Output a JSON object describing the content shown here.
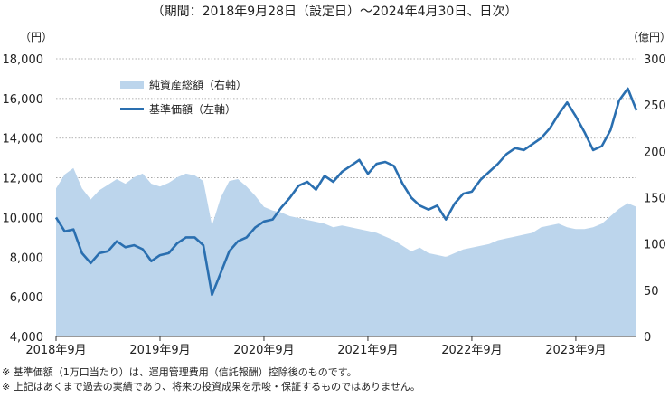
{
  "period_text": "（期間：2018年9月28日（設定日）～2024年4月30日、日次）",
  "notes": [
    "※ 基準価額（1万口当たり）は、運用管理費用（信託報酬）控除後のものです。",
    "※ 上記はあくまで過去の実績であり、将来の投資成果を示唆・保証するものではありません。"
  ],
  "chart_data": {
    "type": "line",
    "title": "",
    "left_axis": {
      "unit": "（円）",
      "ylim": [
        4000,
        18000
      ],
      "ticks": [
        4000,
        6000,
        8000,
        10000,
        12000,
        14000,
        16000,
        18000
      ],
      "tick_labels": [
        "4,000",
        "6,000",
        "8,000",
        "10,000",
        "12,000",
        "14,000",
        "16,000",
        "18,000"
      ]
    },
    "right_axis": {
      "unit": "（億円）",
      "ylim": [
        0,
        300
      ],
      "ticks": [
        0,
        50,
        100,
        150,
        200,
        250,
        300
      ],
      "tick_labels": [
        "0",
        "50",
        "100",
        "150",
        "200",
        "250",
        "300"
      ]
    },
    "x_axis": {
      "xlim": [
        "2018-09",
        "2024-04"
      ],
      "ticks": [
        "2018-09",
        "2019-09",
        "2020-09",
        "2021-09",
        "2022-09",
        "2023-09"
      ],
      "tick_labels": [
        "2018年9月",
        "2019年9月",
        "2020年9月",
        "2021年9月",
        "2022年9月",
        "2023年9月"
      ]
    },
    "grid": true,
    "legend_placement": "top-left",
    "series": [
      {
        "name": "純資産総額（右軸）",
        "kind": "area",
        "axis": "right",
        "color": "#bcd5ec",
        "points": [
          [
            "2018-09",
            160
          ],
          [
            "2018-10",
            175
          ],
          [
            "2018-11",
            182
          ],
          [
            "2018-12",
            160
          ],
          [
            "2019-01",
            148
          ],
          [
            "2019-02",
            158
          ],
          [
            "2019-03",
            164
          ],
          [
            "2019-04",
            170
          ],
          [
            "2019-05",
            165
          ],
          [
            "2019-06",
            172
          ],
          [
            "2019-07",
            176
          ],
          [
            "2019-08",
            165
          ],
          [
            "2019-09",
            162
          ],
          [
            "2019-10",
            166
          ],
          [
            "2019-11",
            172
          ],
          [
            "2019-12",
            176
          ],
          [
            "2020-01",
            174
          ],
          [
            "2020-02",
            168
          ],
          [
            "2020-03",
            120
          ],
          [
            "2020-04",
            150
          ],
          [
            "2020-05",
            168
          ],
          [
            "2020-06",
            170
          ],
          [
            "2020-07",
            162
          ],
          [
            "2020-08",
            152
          ],
          [
            "2020-09",
            140
          ],
          [
            "2020-10",
            136
          ],
          [
            "2020-11",
            134
          ],
          [
            "2020-12",
            130
          ],
          [
            "2021-01",
            128
          ],
          [
            "2021-02",
            126
          ],
          [
            "2021-03",
            124
          ],
          [
            "2021-04",
            122
          ],
          [
            "2021-05",
            118
          ],
          [
            "2021-06",
            120
          ],
          [
            "2021-07",
            118
          ],
          [
            "2021-08",
            116
          ],
          [
            "2021-09",
            114
          ],
          [
            "2021-10",
            112
          ],
          [
            "2021-11",
            108
          ],
          [
            "2021-12",
            104
          ],
          [
            "2022-01",
            98
          ],
          [
            "2022-02",
            92
          ],
          [
            "2022-03",
            96
          ],
          [
            "2022-04",
            90
          ],
          [
            "2022-05",
            88
          ],
          [
            "2022-06",
            86
          ],
          [
            "2022-07",
            90
          ],
          [
            "2022-08",
            94
          ],
          [
            "2022-09",
            96
          ],
          [
            "2022-10",
            98
          ],
          [
            "2022-11",
            100
          ],
          [
            "2022-12",
            104
          ],
          [
            "2023-01",
            106
          ],
          [
            "2023-02",
            108
          ],
          [
            "2023-03",
            110
          ],
          [
            "2023-04",
            112
          ],
          [
            "2023-05",
            118
          ],
          [
            "2023-06",
            120
          ],
          [
            "2023-07",
            122
          ],
          [
            "2023-08",
            118
          ],
          [
            "2023-09",
            116
          ],
          [
            "2023-10",
            116
          ],
          [
            "2023-11",
            118
          ],
          [
            "2023-12",
            122
          ],
          [
            "2024-01",
            130
          ],
          [
            "2024-02",
            138
          ],
          [
            "2024-03",
            144
          ],
          [
            "2024-04",
            140
          ]
        ]
      },
      {
        "name": "基準価額（左軸）",
        "kind": "line",
        "axis": "left",
        "color": "#2a6fb0",
        "points": [
          [
            "2018-09",
            10000
          ],
          [
            "2018-10",
            9300
          ],
          [
            "2018-11",
            9400
          ],
          [
            "2018-12",
            8200
          ],
          [
            "2019-01",
            7700
          ],
          [
            "2019-02",
            8200
          ],
          [
            "2019-03",
            8300
          ],
          [
            "2019-04",
            8800
          ],
          [
            "2019-05",
            8500
          ],
          [
            "2019-06",
            8600
          ],
          [
            "2019-07",
            8400
          ],
          [
            "2019-08",
            7800
          ],
          [
            "2019-09",
            8100
          ],
          [
            "2019-10",
            8200
          ],
          [
            "2019-11",
            8700
          ],
          [
            "2019-12",
            9000
          ],
          [
            "2020-01",
            9000
          ],
          [
            "2020-02",
            8600
          ],
          [
            "2020-03",
            6100
          ],
          [
            "2020-04",
            7200
          ],
          [
            "2020-05",
            8300
          ],
          [
            "2020-06",
            8800
          ],
          [
            "2020-07",
            9000
          ],
          [
            "2020-08",
            9500
          ],
          [
            "2020-09",
            9800
          ],
          [
            "2020-10",
            9900
          ],
          [
            "2020-11",
            10500
          ],
          [
            "2020-12",
            11000
          ],
          [
            "2021-01",
            11600
          ],
          [
            "2021-02",
            11800
          ],
          [
            "2021-03",
            11400
          ],
          [
            "2021-04",
            12100
          ],
          [
            "2021-05",
            11800
          ],
          [
            "2021-06",
            12300
          ],
          [
            "2021-07",
            12600
          ],
          [
            "2021-08",
            12900
          ],
          [
            "2021-09",
            12200
          ],
          [
            "2021-10",
            12700
          ],
          [
            "2021-11",
            12800
          ],
          [
            "2021-12",
            12600
          ],
          [
            "2022-01",
            11700
          ],
          [
            "2022-02",
            11000
          ],
          [
            "2022-03",
            10600
          ],
          [
            "2022-04",
            10400
          ],
          [
            "2022-05",
            10600
          ],
          [
            "2022-06",
            9900
          ],
          [
            "2022-07",
            10700
          ],
          [
            "2022-08",
            11200
          ],
          [
            "2022-09",
            11300
          ],
          [
            "2022-10",
            11900
          ],
          [
            "2022-11",
            12300
          ],
          [
            "2022-12",
            12700
          ],
          [
            "2023-01",
            13200
          ],
          [
            "2023-02",
            13500
          ],
          [
            "2023-03",
            13400
          ],
          [
            "2023-04",
            13700
          ],
          [
            "2023-05",
            14000
          ],
          [
            "2023-06",
            14500
          ],
          [
            "2023-07",
            15200
          ],
          [
            "2023-08",
            15800
          ],
          [
            "2023-09",
            15100
          ],
          [
            "2023-10",
            14300
          ],
          [
            "2023-11",
            13400
          ],
          [
            "2023-12",
            13600
          ],
          [
            "2024-01",
            14400
          ],
          [
            "2024-02",
            15900
          ],
          [
            "2024-03",
            16500
          ],
          [
            "2024-04",
            15400
          ]
        ]
      }
    ]
  }
}
